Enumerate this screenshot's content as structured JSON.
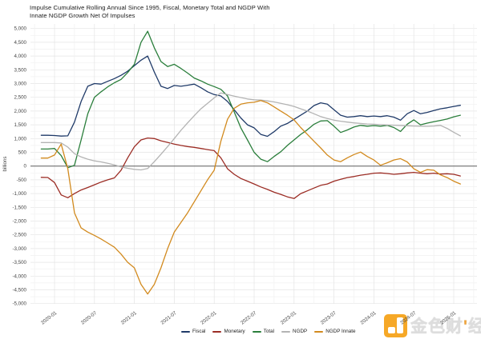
{
  "title_line1": "Impulse Cumulative Rolling Annual Since 1995, Fiscal, Monetary Total and NGDP With",
  "title_line2": "Innate NGDP Growth Net Of Impulses",
  "watermark": {
    "text_gold": "金色",
    "text_cai": "财",
    "apostrophe": "'",
    "text_jing": "经"
  },
  "chart_data": {
    "type": "line",
    "title": "Impulse Cumulative Rolling Annual Since 1995, Fiscal, Monetary Total and NGDP With Innate NGDP Growth Net Of Impulses",
    "xlabel": "",
    "ylabel": "billions",
    "ylim": [
      -5000,
      5000
    ],
    "y_tick_step": 500,
    "grid": true,
    "zero_line": true,
    "legend_position": "bottom",
    "axis_text_color": "#454545",
    "grid_major_color": "#e4e4e4",
    "grid_minor_color": "#f1f1f1",
    "zero_line_color": "#5f5f5f",
    "y_ticks": [
      "5,000",
      "4,500",
      "4,000",
      "3,500",
      "3,000",
      "2,500",
      "2,000",
      "1,500",
      "1,000",
      "500",
      "0",
      "-500",
      "-1,000",
      "-1,500",
      "-2,000",
      "-2,500",
      "-3,000",
      "-3,500",
      "-4,000",
      "-4,500",
      "-5,000"
    ],
    "x_ticks": [
      "2020-01",
      "2020-07",
      "2021-01",
      "2021-07",
      "2022-01",
      "2022-07",
      "2023-01",
      "2023-07",
      "2024-01",
      "2024-07",
      "2025-01"
    ],
    "x": [
      "2019-11",
      "2019-12",
      "2020-01",
      "2020-02",
      "2020-03",
      "2020-04",
      "2020-05",
      "2020-06",
      "2020-07",
      "2020-08",
      "2020-09",
      "2020-10",
      "2020-11",
      "2020-12",
      "2021-01",
      "2021-02",
      "2021-03",
      "2021-04",
      "2021-05",
      "2021-06",
      "2021-07",
      "2021-08",
      "2021-09",
      "2021-10",
      "2021-11",
      "2021-12",
      "2022-01",
      "2022-02",
      "2022-03",
      "2022-04",
      "2022-05",
      "2022-06",
      "2022-07",
      "2022-08",
      "2022-09",
      "2022-10",
      "2022-11",
      "2022-12",
      "2023-01",
      "2023-02",
      "2023-03",
      "2023-04",
      "2023-05",
      "2023-06",
      "2023-07",
      "2023-08",
      "2023-09",
      "2023-10",
      "2023-11",
      "2023-12",
      "2024-01",
      "2024-02",
      "2024-03",
      "2024-04",
      "2024-05",
      "2024-06",
      "2024-07",
      "2024-08",
      "2024-09",
      "2024-10",
      "2024-11",
      "2024-12",
      "2025-01",
      "2025-02"
    ],
    "series": [
      {
        "name": "Fiscal",
        "color": "#1f3a68",
        "values": [
          1120,
          1120,
          1110,
          1090,
          1100,
          1600,
          2350,
          2900,
          3000,
          2980,
          3080,
          3180,
          3300,
          3450,
          3650,
          3850,
          4000,
          3420,
          2900,
          2820,
          2930,
          2900,
          2940,
          2980,
          2850,
          2700,
          2600,
          2550,
          2350,
          2050,
          1750,
          1500,
          1390,
          1150,
          1080,
          1250,
          1450,
          1550,
          1700,
          1850,
          2000,
          2200,
          2300,
          2250,
          2050,
          1850,
          1780,
          1800,
          1830,
          1800,
          1820,
          1800,
          1830,
          1780,
          1670,
          1900,
          2020,
          1900,
          1950,
          2020,
          2080,
          2120,
          2170,
          2210
        ]
      },
      {
        "name": "Monetary",
        "color": "#9b2c24",
        "values": [
          -410,
          -415,
          -600,
          -1050,
          -1150,
          -1000,
          -870,
          -780,
          -680,
          -580,
          -500,
          -430,
          -150,
          300,
          700,
          950,
          1020,
          1000,
          920,
          860,
          800,
          750,
          710,
          680,
          640,
          600,
          560,
          300,
          -100,
          -300,
          -450,
          -550,
          -650,
          -760,
          -850,
          -950,
          -1030,
          -1120,
          -1180,
          -1000,
          -900,
          -800,
          -700,
          -650,
          -550,
          -480,
          -420,
          -380,
          -330,
          -300,
          -260,
          -250,
          -270,
          -300,
          -280,
          -250,
          -230,
          -260,
          -280,
          -260,
          -290,
          -280,
          -300,
          -360
        ]
      },
      {
        "name": "Total",
        "color": "#2a7e3b",
        "values": [
          620,
          620,
          640,
          380,
          -60,
          30,
          950,
          1900,
          2500,
          2700,
          2880,
          3030,
          3150,
          3400,
          3700,
          4500,
          4900,
          4300,
          3800,
          3620,
          3700,
          3550,
          3380,
          3200,
          3100,
          2980,
          2890,
          2790,
          2550,
          1970,
          1390,
          950,
          500,
          250,
          160,
          350,
          520,
          750,
          950,
          1150,
          1320,
          1520,
          1640,
          1650,
          1450,
          1220,
          1310,
          1420,
          1480,
          1450,
          1470,
          1450,
          1480,
          1400,
          1260,
          1520,
          1680,
          1500,
          1560,
          1610,
          1660,
          1710,
          1790,
          1850
        ]
      },
      {
        "name": "NGDP",
        "color": "#b3b3b3",
        "values": [
          855,
          855,
          855,
          840,
          690,
          450,
          330,
          250,
          190,
          150,
          100,
          40,
          -30,
          -80,
          -120,
          -140,
          -90,
          160,
          430,
          710,
          1000,
          1300,
          1570,
          1830,
          2080,
          2280,
          2480,
          2660,
          2600,
          2540,
          2490,
          2440,
          2410,
          2400,
          2370,
          2330,
          2280,
          2230,
          2170,
          2080,
          2000,
          1900,
          1800,
          1730,
          1670,
          1630,
          1600,
          1570,
          1550,
          1530,
          1520,
          1505,
          1495,
          1485,
          1475,
          1465,
          1455,
          1450,
          1445,
          1455,
          1480,
          1370,
          1230,
          1100
        ]
      },
      {
        "name": "NGDP Innate",
        "color": "#d28a1e",
        "values": [
          290,
          290,
          400,
          800,
          -100,
          -1700,
          -2250,
          -2400,
          -2520,
          -2650,
          -2800,
          -2950,
          -3200,
          -3500,
          -3700,
          -4300,
          -4650,
          -4300,
          -3700,
          -3000,
          -2400,
          -2050,
          -1700,
          -1300,
          -900,
          -500,
          -150,
          900,
          1700,
          2100,
          2250,
          2300,
          2320,
          2380,
          2300,
          2150,
          2000,
          1850,
          1680,
          1400,
          1150,
          900,
          660,
          400,
          220,
          160,
          300,
          420,
          510,
          350,
          220,
          30,
          120,
          220,
          270,
          150,
          -100,
          -230,
          -130,
          -150,
          -320,
          -420,
          -550,
          -650
        ]
      }
    ]
  }
}
